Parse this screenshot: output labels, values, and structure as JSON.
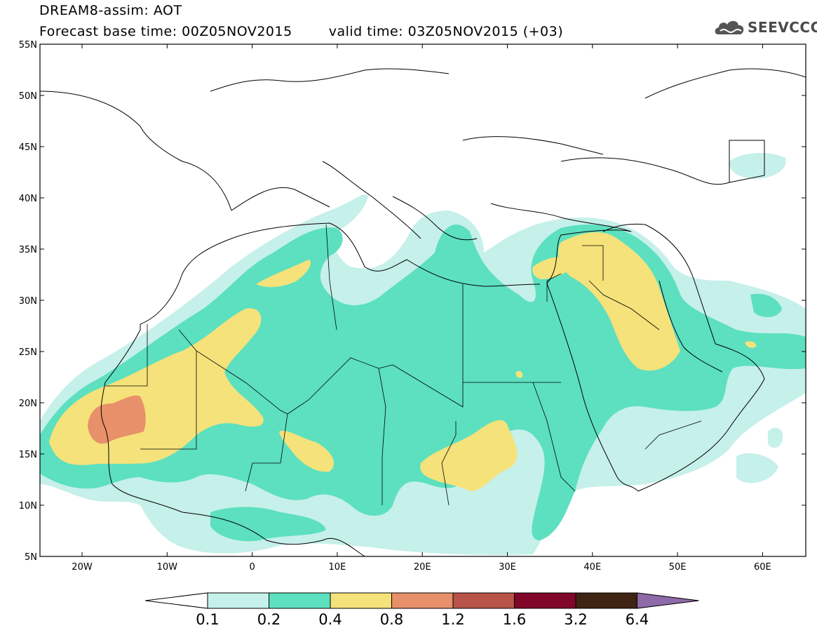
{
  "header": {
    "title": "DREAM8-assim: AOT",
    "base_time": "Forecast base time: 00Z05NOV2015",
    "valid_time": "valid time: 03Z05NOV2015 (+03)",
    "logo_text": "SEEVCCC",
    "logo_icon": "cloud-logo-icon"
  },
  "map": {
    "lat_labels": [
      "55N",
      "50N",
      "45N",
      "40N",
      "35N",
      "30N",
      "25N",
      "20N",
      "15N",
      "10N",
      "5N"
    ],
    "lon_labels": [
      "20W",
      "10W",
      "0",
      "10E",
      "20E",
      "30E",
      "40E",
      "50E",
      "60E"
    ]
  },
  "colorbar": {
    "labels": [
      "0.1",
      "0.2",
      "0.4",
      "0.8",
      "1.2",
      "1.6",
      "3.2",
      "6.4"
    ],
    "colors": [
      "#c6f0ea",
      "#5ce0bf",
      "#f5e27a",
      "#e8906a",
      "#b85448",
      "#80062a",
      "#3e2412",
      "#8e6aa8"
    ]
  },
  "fields": {
    "c1": "#c6f0ea",
    "c2": "#5ce0bf",
    "c3": "#f5e27a",
    "c4": "#e8906a"
  }
}
